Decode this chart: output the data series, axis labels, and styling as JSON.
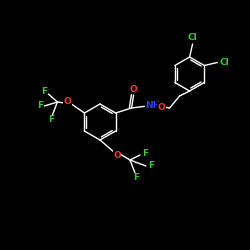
{
  "background_color": "#000000",
  "bond_color": "#ffffff",
  "atom_colors": {
    "O": "#ff3333",
    "N": "#3333ff",
    "F": "#33cc33",
    "Cl": "#33cc33",
    "C": "#ffffff",
    "H": "#ffffff"
  }
}
